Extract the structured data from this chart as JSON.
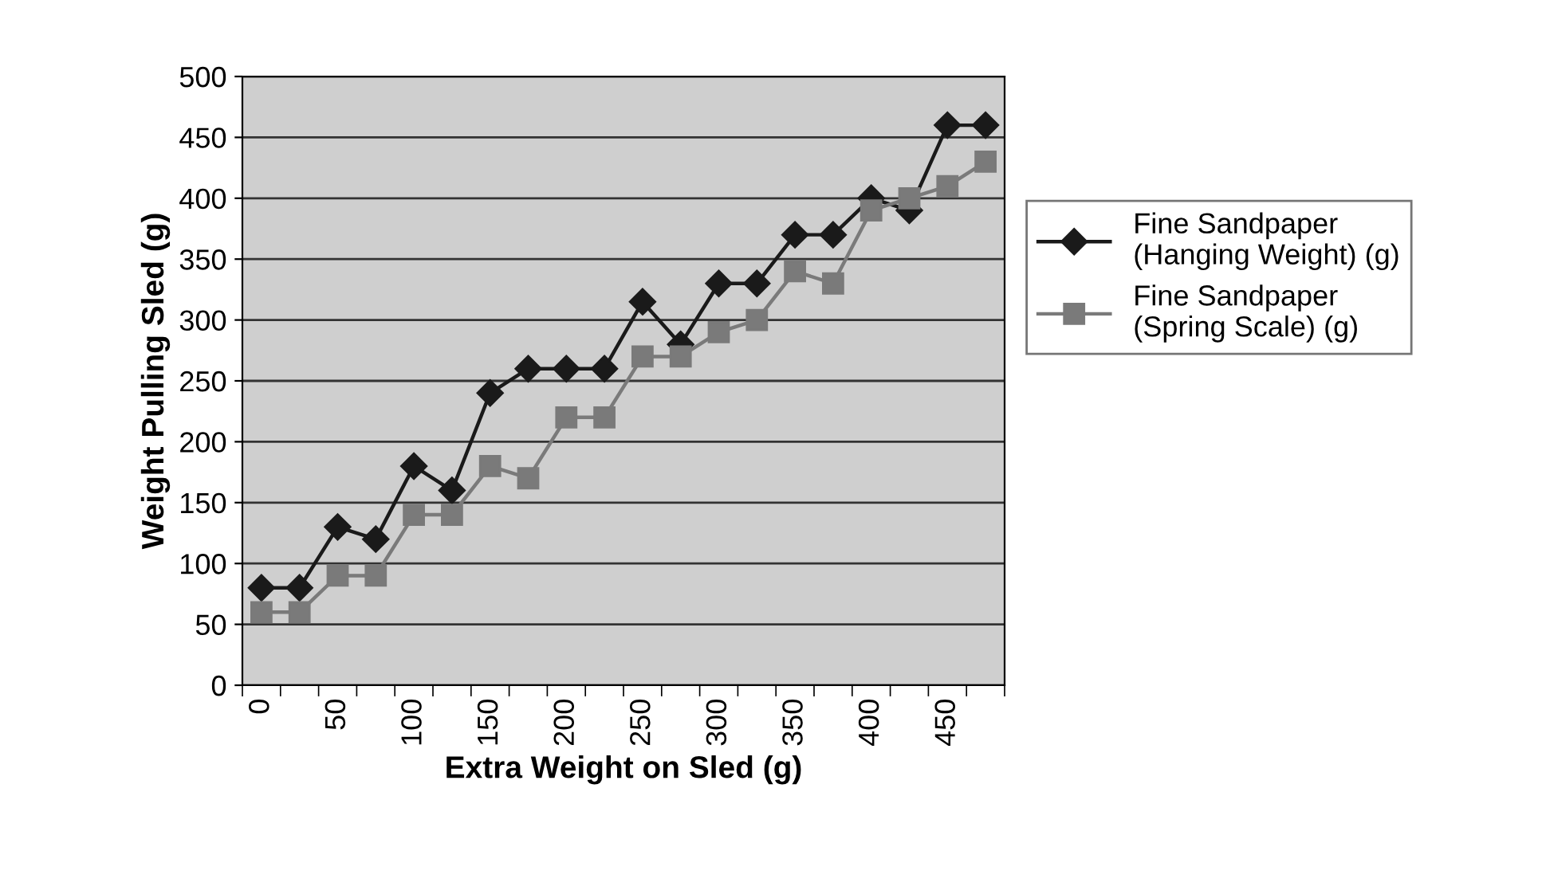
{
  "chart_data": {
    "type": "line",
    "xlabel": "Extra Weight on Sled (g)",
    "ylabel": "Weight Pulling Sled (g)",
    "categories": [
      "0",
      null,
      "50",
      null,
      "100",
      null,
      "150",
      null,
      "200",
      null,
      "250",
      null,
      "300",
      null,
      "350",
      null,
      "400",
      null,
      "450",
      null
    ],
    "series": [
      {
        "name": "Fine Sandpaper (Hanging Weight) (g)",
        "color": "#1a1a1a",
        "marker": "diamond",
        "values": [
          80,
          80,
          130,
          120,
          180,
          160,
          240,
          260,
          260,
          260,
          315,
          280,
          330,
          330,
          370,
          370,
          400,
          390,
          460,
          460
        ]
      },
      {
        "name": "Fine Sandpaper (Spring Scale) (g)",
        "color": "#7a7a7a",
        "marker": "square",
        "values": [
          60,
          60,
          90,
          90,
          140,
          140,
          180,
          170,
          220,
          220,
          270,
          270,
          290,
          300,
          340,
          330,
          390,
          400,
          410,
          430
        ]
      }
    ],
    "ylim": [
      0,
      500
    ],
    "yticks": [
      0,
      50,
      100,
      150,
      200,
      250,
      300,
      350,
      400,
      450,
      500
    ],
    "grid": "y",
    "legend": "right",
    "line_style": "solid"
  }
}
